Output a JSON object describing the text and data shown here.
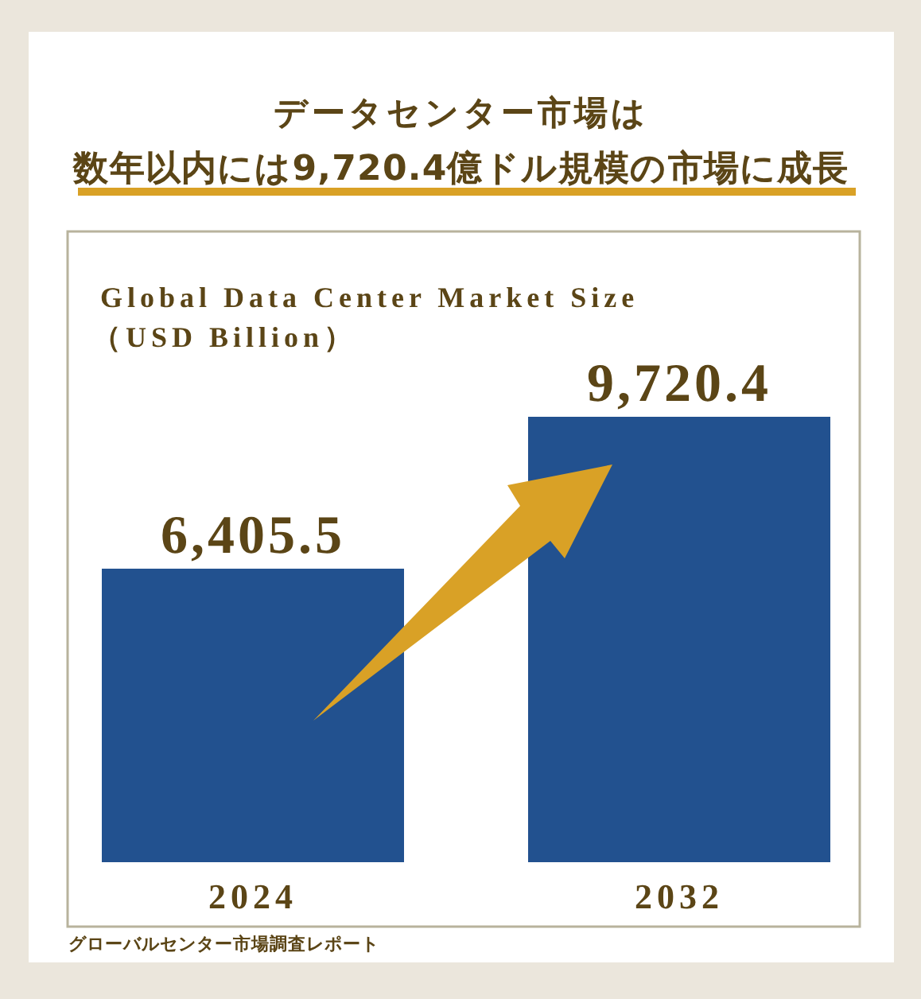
{
  "chart_data": {
    "type": "bar",
    "title": "データセンター市場は",
    "subtitle": "数年以内には9,720.4億ドル規模の市場に成長",
    "ylabel": "Global Data Center Market Size\n（USD Billion）",
    "annotations": [
      "グローバルセンター市場調査レポート"
    ],
    "categories": [
      "2024",
      "2032"
    ],
    "values": [
      6405.5,
      9720.4
    ],
    "color": "#22518f",
    "value_labels": [
      "6,405.5",
      "9,720.4"
    ]
  }
}
